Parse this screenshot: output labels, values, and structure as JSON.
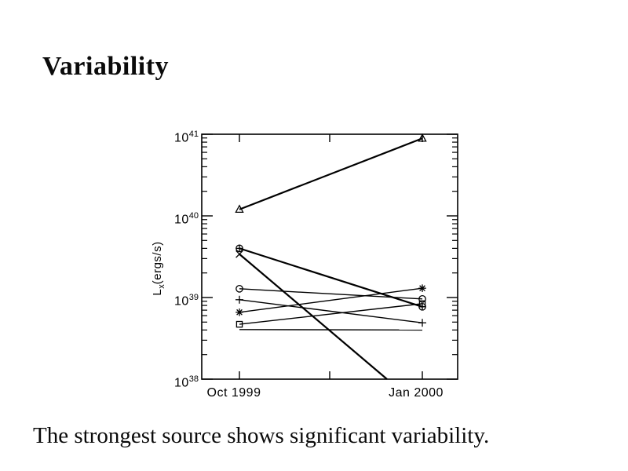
{
  "slide": {
    "title": "Variability",
    "caption": "The strongest source shows significant variability."
  },
  "chart_data": {
    "type": "line",
    "title": "",
    "xlabel": "",
    "ylabel": {
      "symbol": "L",
      "subscript": "x",
      "units": "(ergs/s)"
    },
    "x_categories": [
      "Oct 1999",
      "Jan 2000"
    ],
    "y_scale": "log",
    "ylim": [
      1e+38,
      1e+41
    ],
    "yticks": [
      {
        "base": "10",
        "exp": "41"
      },
      {
        "base": "10",
        "exp": "40"
      },
      {
        "base": "10",
        "exp": "39"
      },
      {
        "base": "10",
        "exp": "38"
      }
    ],
    "grid": false,
    "legend": false,
    "line_color": "#000000",
    "series": [
      {
        "name": "triangle-source",
        "marker": "triangle",
        "values": [
          1.2e+40,
          8.9e+40
        ],
        "bold": true,
        "clipped": false
      },
      {
        "name": "circle-plus-source",
        "marker": "circle-plus",
        "values": [
          4e+39,
          7.7e+38
        ],
        "bold": true,
        "clipped": false
      },
      {
        "name": "x-cross-source",
        "marker": "x-cross",
        "values": [
          3.4e+39,
          4.3e+37
        ],
        "bold": true,
        "clipped": true
      },
      {
        "name": "circle-source",
        "marker": "circle",
        "values": [
          1.28e+39,
          9.6e+38
        ],
        "bold": false,
        "clipped": false
      },
      {
        "name": "plus-source",
        "marker": "plus",
        "values": [
          9.4e+38,
          4.9e+38
        ],
        "bold": false,
        "clipped": false
      },
      {
        "name": "asterisk-source",
        "marker": "asterisk",
        "values": [
          6.6e+38,
          1.3e+39
        ],
        "bold": false,
        "clipped": false
      },
      {
        "name": "square-source",
        "marker": "square",
        "values": [
          4.7e+38,
          8.4e+38
        ],
        "bold": false,
        "clipped": false
      },
      {
        "name": "unmarked-source",
        "marker": "none",
        "values": [
          4.05e+38,
          4e+38
        ],
        "bold": false,
        "clipped": false
      }
    ]
  }
}
